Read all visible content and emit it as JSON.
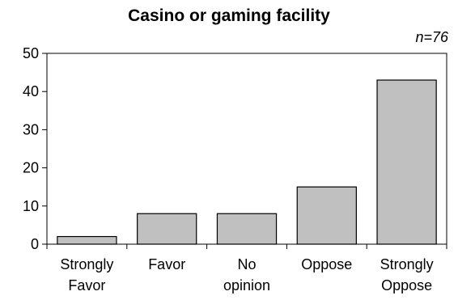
{
  "chart_data": {
    "type": "bar",
    "title": "Casino or gaming facility",
    "annotation": "n=76",
    "categories": [
      [
        "Strongly",
        "Favor"
      ],
      [
        "Favor"
      ],
      [
        "No",
        "opinion"
      ],
      [
        "Oppose"
      ],
      [
        "Strongly",
        "Oppose"
      ]
    ],
    "values": [
      2,
      8,
      8,
      15,
      43
    ],
    "ylim": [
      0,
      50
    ],
    "yticks": [
      0,
      10,
      20,
      30,
      40,
      50
    ],
    "grid": false,
    "bar_color": "#c0c0c0",
    "edge_color": "#000000"
  }
}
